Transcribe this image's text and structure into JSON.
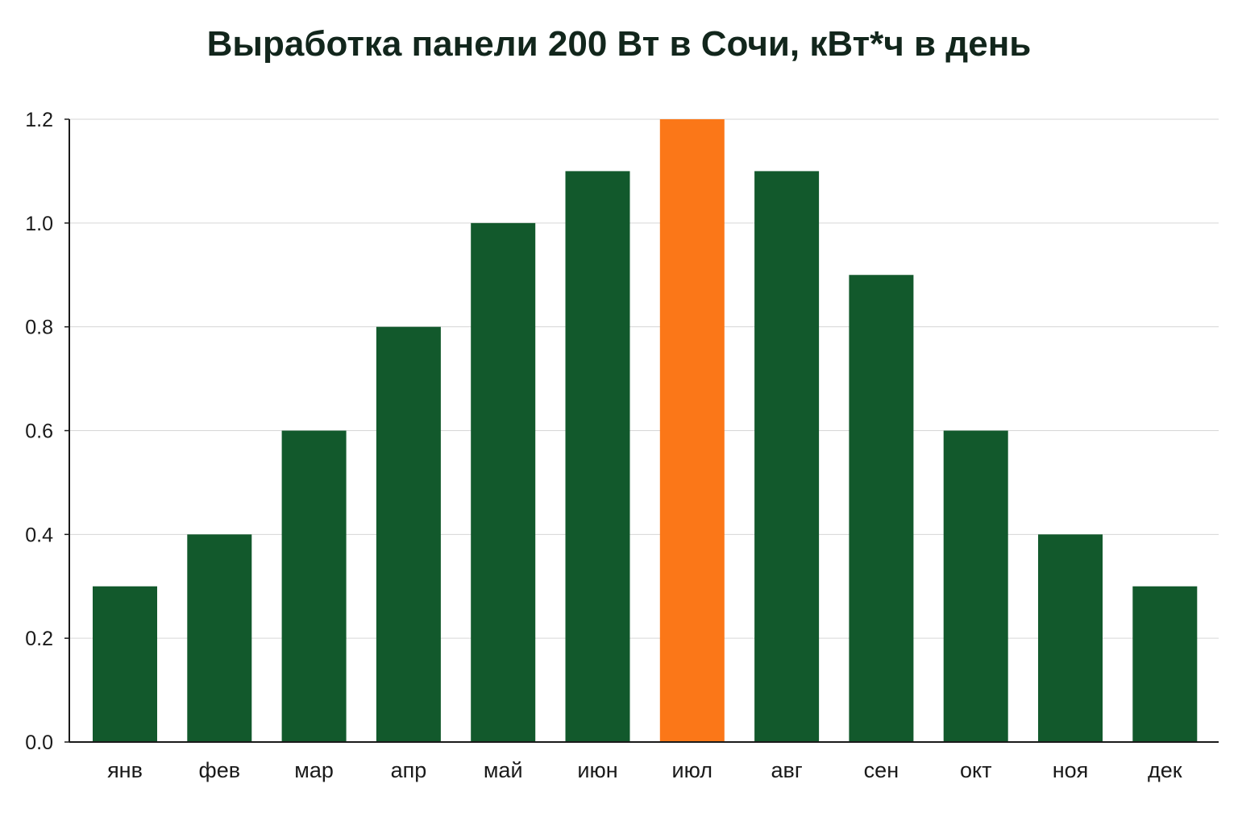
{
  "chart_data": {
    "type": "bar",
    "title": "Выработка панели 200 Вт в Сочи, кВт*ч в день",
    "xlabel": "",
    "ylabel": "",
    "categories": [
      "янв",
      "фев",
      "мар",
      "апр",
      "май",
      "июн",
      "июл",
      "авг",
      "сен",
      "окт",
      "ноя",
      "дек"
    ],
    "values": [
      0.3,
      0.4,
      0.6,
      0.8,
      1.0,
      1.1,
      1.2,
      1.1,
      0.9,
      0.6,
      0.4,
      0.3
    ],
    "ylim": [
      0,
      1.2
    ],
    "yticks": [
      "0.0",
      "0.2",
      "0.4",
      "0.6",
      "0.8",
      "1.0",
      "1.2"
    ],
    "highlight_category": "июл",
    "grid": true,
    "colors": {
      "bar": "#12592c",
      "highlight": "#fb7718",
      "grid": "#d6d6d6",
      "axis": "#1a1a1a"
    }
  }
}
